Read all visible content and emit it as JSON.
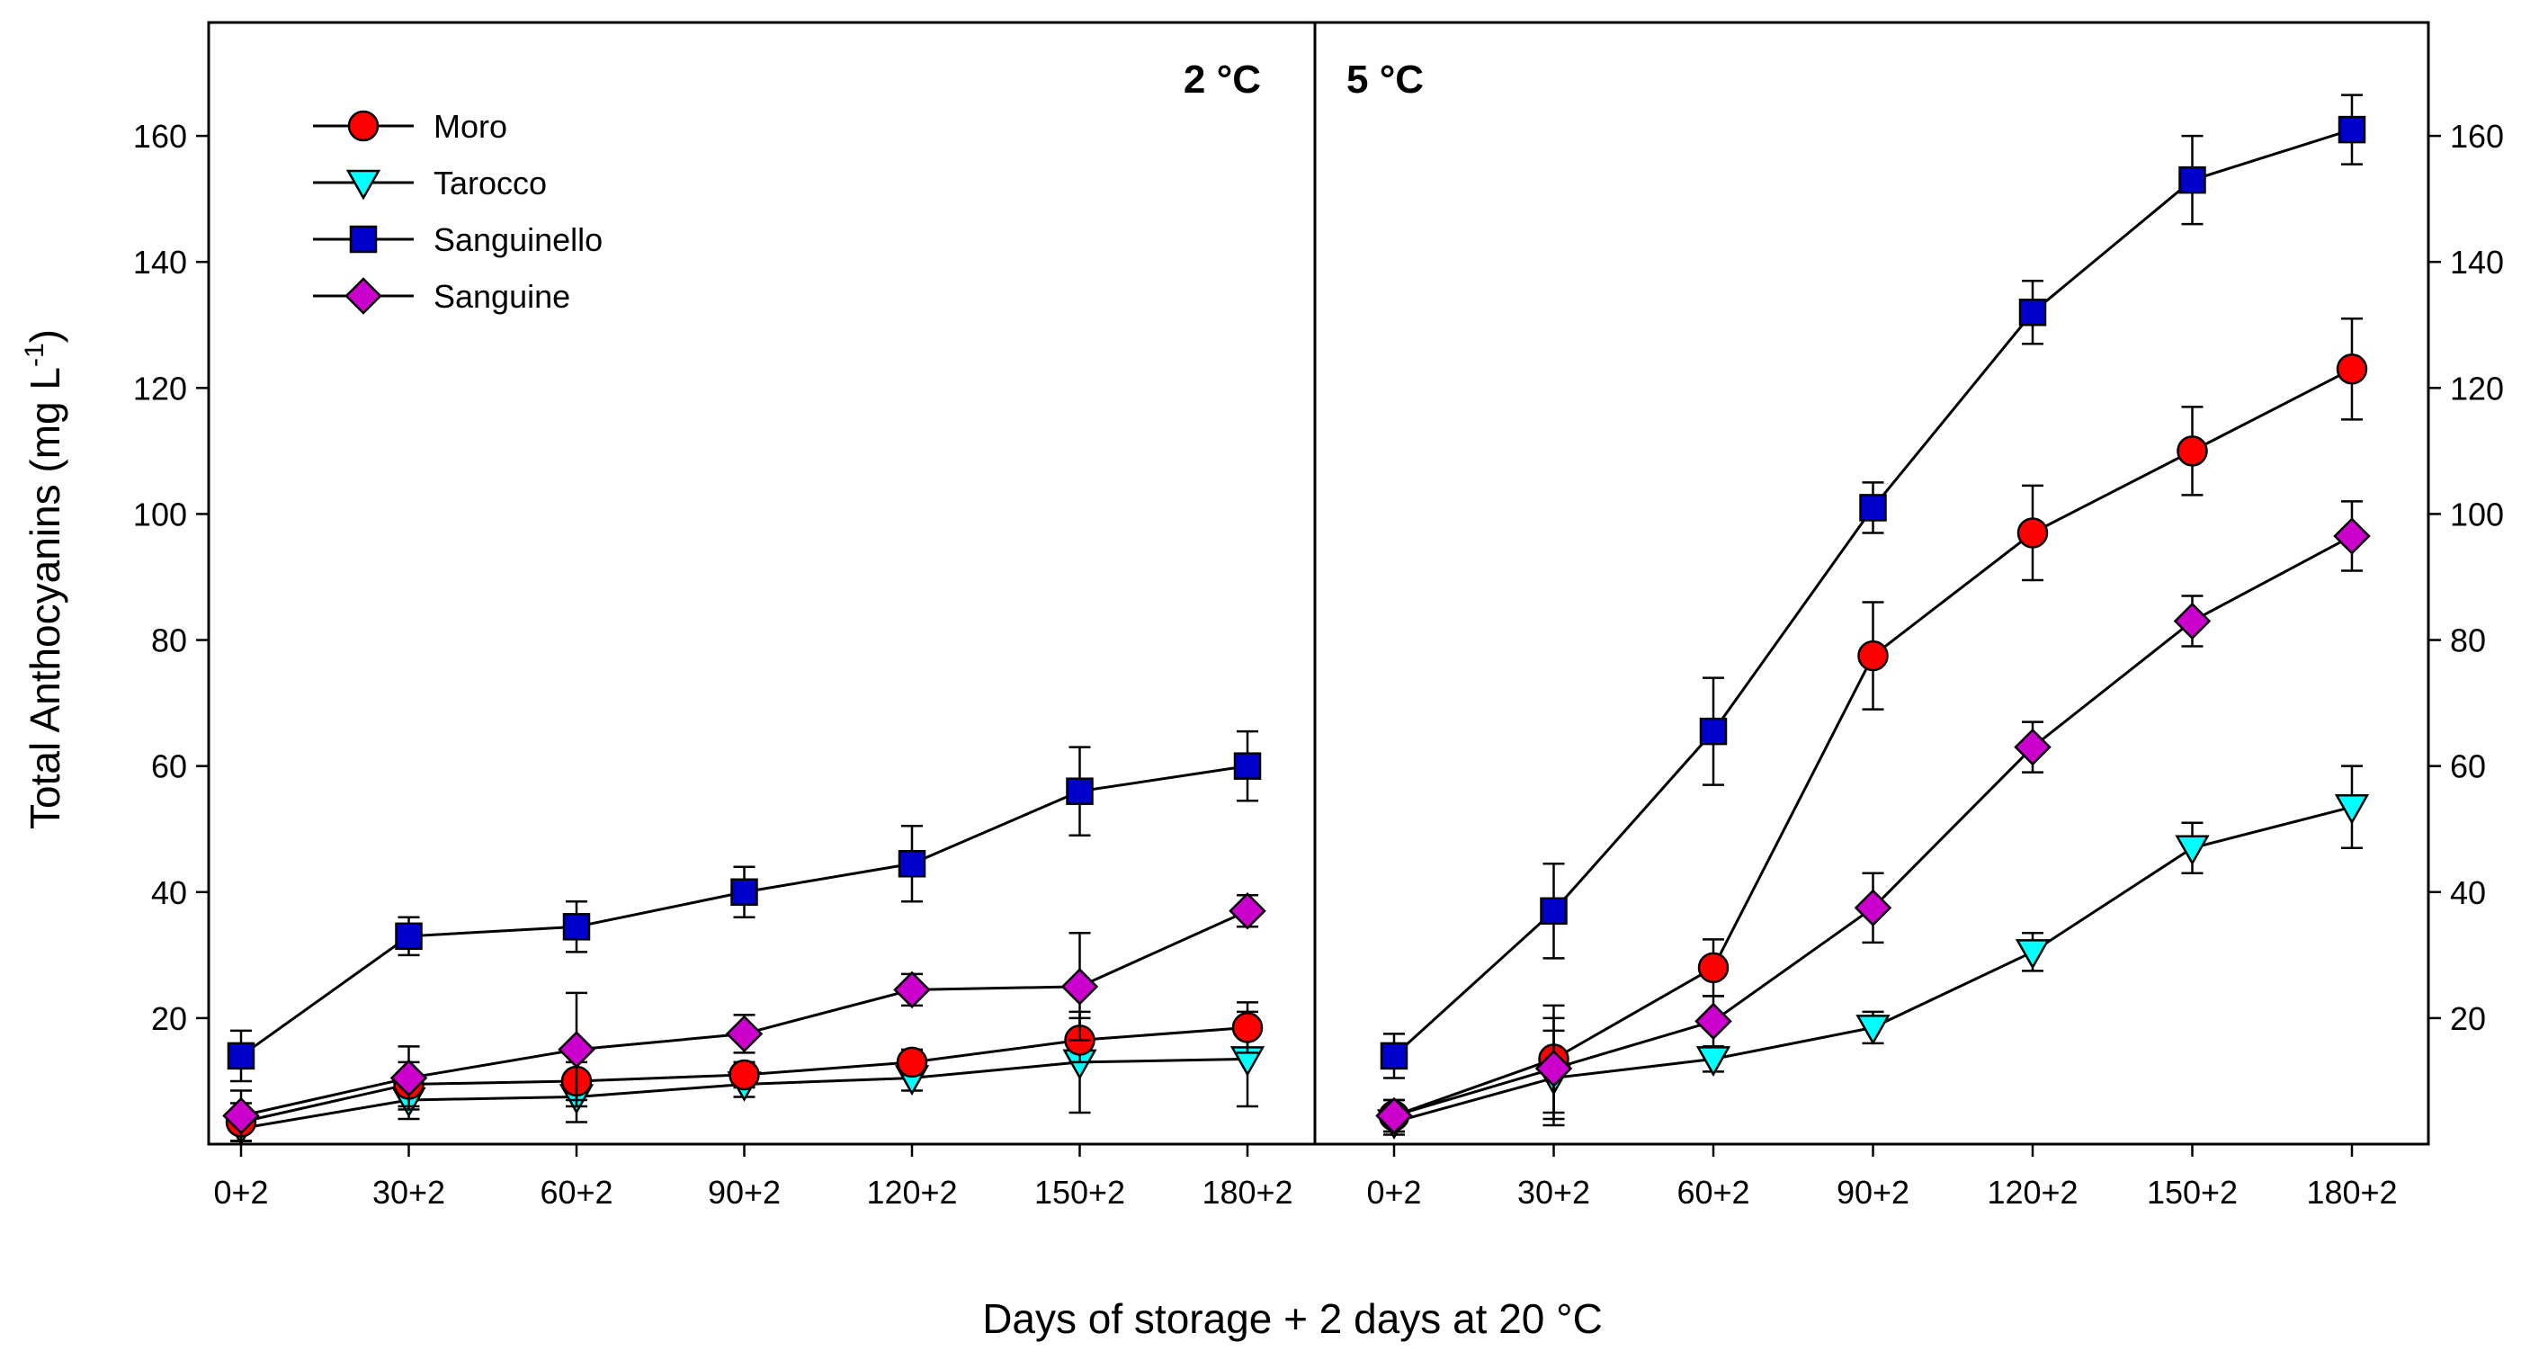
{
  "chart_data": {
    "type": "line",
    "ylabel_main": "Total Anthocyanins (mg L",
    "ylabel_sup": "-1",
    "ylabel_close": ")",
    "xlabel": "Days of storage + 2 days at 20 °C",
    "categories": [
      "0+2",
      "30+2",
      "60+2",
      "90+2",
      "120+2",
      "150+2",
      "180+2"
    ],
    "ylim": [
      0,
      178
    ],
    "yticks": [
      20,
      40,
      60,
      80,
      100,
      120,
      140,
      160
    ],
    "legend": {
      "position": "top-left",
      "entries": [
        "Moro",
        "Tarocco",
        "Sanguinello",
        "Sanguine"
      ]
    },
    "styles": {
      "Moro": {
        "color": "#ff0000",
        "marker": "circle"
      },
      "Tarocco": {
        "color": "#00ffff",
        "marker": "triangle-down"
      },
      "Sanguinello": {
        "color": "#0000cc",
        "marker": "square"
      },
      "Sanguine": {
        "color": "#cc00cc",
        "marker": "diamond"
      }
    },
    "panels": [
      {
        "label": "2 °C",
        "series": [
          {
            "name": "Moro",
            "values": [
              3.5,
              9.5,
              10,
              11,
              13,
              16.5,
              18.5
            ],
            "errors": [
              3,
              3.5,
              3,
              2,
              2,
              3.5,
              4
            ]
          },
          {
            "name": "Tarocco",
            "values": [
              2.5,
              7,
              7.5,
              9.5,
              10.5,
              13,
              13.5
            ],
            "errors": [
              2,
              3,
              4,
              2,
              2,
              8,
              7.5
            ]
          },
          {
            "name": "Sanguinello",
            "values": [
              14,
              33,
              34.5,
              40,
              44.5,
              56,
              60
            ],
            "errors": [
              4,
              3,
              4,
              4,
              6,
              7,
              5.5
            ]
          },
          {
            "name": "Sanguine",
            "values": [
              4.5,
              10.5,
              15,
              17.5,
              24.5,
              25,
              37
            ],
            "errors": [
              4,
              5,
              9,
              3,
              2.5,
              8.5,
              2.5
            ]
          }
        ]
      },
      {
        "label": "5 °C",
        "series": [
          {
            "name": "Moro",
            "values": [
              4.5,
              13.5,
              28,
              77.5,
              97,
              110,
              123
            ],
            "errors": [
              2.5,
              8.5,
              4.5,
              8.5,
              7.5,
              7,
              8
            ]
          },
          {
            "name": "Tarocco",
            "values": [
              3.5,
              10.5,
              13.5,
              18.5,
              30.5,
              47,
              53.5
            ],
            "errors": [
              2,
              7.5,
              2,
              2.5,
              3,
              4,
              6.5
            ]
          },
          {
            "name": "Sanguinello",
            "values": [
              14,
              37,
              65.5,
              101,
              132,
              153,
              161
            ],
            "errors": [
              3.5,
              7.5,
              8.5,
              4,
              5,
              7,
              5.5
            ]
          },
          {
            "name": "Sanguine",
            "values": [
              4.5,
              12,
              19.5,
              37.5,
              63,
              83,
              96.5
            ],
            "errors": [
              2.5,
              8,
              4,
              5.5,
              4,
              4,
              5.5
            ]
          }
        ]
      }
    ]
  }
}
